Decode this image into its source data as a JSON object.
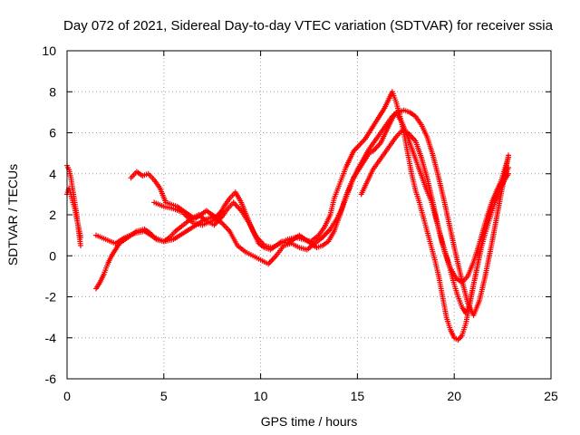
{
  "chart_data": {
    "type": "scatter",
    "title": "Day 072 of 2021, Sidereal Day-to-day VTEC variation (SDTVAR) for receiver ssia",
    "xlabel": "GPS time / hours",
    "ylabel": "SDTVAR / TECUs",
    "xlim": [
      0,
      25
    ],
    "ylim": [
      -6,
      10
    ],
    "xticks": [
      "0",
      "5",
      "10",
      "15",
      "20",
      "25"
    ],
    "yticks": [
      "-6",
      "-4",
      "-2",
      "0",
      "2",
      "4",
      "6",
      "8",
      "10"
    ],
    "grid": true,
    "marker": "+",
    "color": "#ff0000",
    "series": [
      {
        "x": [
          0.0,
          0.1,
          0.2,
          0.3,
          0.4,
          0.5,
          0.6,
          0.7
        ],
        "y": [
          4.4,
          4.2,
          3.8,
          3.2,
          2.6,
          2.0,
          1.2,
          0.5
        ]
      },
      {
        "x": [
          0.0,
          0.1,
          0.2,
          0.3,
          0.4,
          0.5,
          0.6,
          0.7
        ],
        "y": [
          3.0,
          3.3,
          3.0,
          2.6,
          2.3,
          1.8,
          1.4,
          0.9
        ]
      },
      {
        "x": [
          1.5,
          1.7,
          1.9,
          2.1,
          2.3,
          2.5,
          2.7,
          3.0,
          3.3,
          3.6,
          4.0,
          4.3,
          4.6,
          5.0,
          5.3,
          5.6,
          6.0,
          6.4,
          6.8,
          7.2,
          7.6,
          8.0,
          8.3,
          8.6,
          9.0,
          9.4,
          9.8,
          10.2,
          10.6,
          11.0,
          11.4,
          11.8,
          12.2,
          12.6,
          13.0,
          13.3,
          13.6,
          13.8,
          14.0,
          14.2,
          14.4,
          14.6,
          14.8,
          15.0,
          15.2,
          15.4,
          15.6,
          15.8,
          16.0,
          16.2,
          16.4,
          16.6,
          16.8,
          17.0,
          17.2,
          17.4,
          17.6,
          17.8,
          18.0,
          18.2,
          18.4,
          18.6,
          18.8,
          19.0,
          19.2,
          19.4,
          19.6,
          19.8,
          20.0,
          20.2,
          20.4,
          20.6,
          20.8,
          21.0,
          21.2,
          21.4,
          21.6,
          21.8,
          22.0,
          22.2,
          22.4,
          22.6,
          22.8
        ],
        "y": [
          -1.6,
          -1.3,
          -0.9,
          -0.4,
          0.0,
          0.3,
          0.6,
          0.8,
          1.0,
          1.2,
          1.3,
          1.1,
          0.8,
          0.7,
          0.9,
          1.2,
          1.5,
          1.8,
          2.0,
          1.7,
          1.5,
          1.9,
          2.3,
          2.6,
          2.2,
          1.6,
          0.9,
          0.5,
          0.4,
          0.6,
          0.8,
          0.9,
          0.8,
          0.7,
          1.0,
          1.4,
          2.0,
          2.8,
          3.3,
          3.8,
          4.3,
          4.7,
          5.1,
          5.3,
          5.5,
          5.7,
          6.0,
          6.3,
          6.6,
          6.9,
          7.2,
          7.6,
          8.0,
          7.5,
          6.8,
          6.0,
          5.0,
          4.0,
          3.2,
          2.6,
          1.9,
          1.2,
          0.5,
          -0.2,
          -1.0,
          -2.0,
          -3.0,
          -3.6,
          -4.0,
          -4.1,
          -3.9,
          -3.3,
          -2.4,
          -1.4,
          -0.5,
          0.4,
          1.1,
          1.7,
          2.3,
          2.8,
          3.3,
          3.7,
          4.0
        ]
      },
      {
        "x": [
          1.5,
          2.0,
          2.5,
          3.0,
          3.5,
          4.0,
          4.5,
          5.0,
          5.5,
          6.0,
          6.5,
          7.0,
          7.5,
          8.0,
          8.4,
          8.8,
          9.2,
          9.6,
          10.0,
          10.4,
          10.8,
          11.2,
          11.6,
          12.0,
          12.4,
          12.8,
          13.2,
          13.6,
          14.0,
          14.2,
          14.4,
          14.6,
          14.8,
          15.0,
          15.2,
          15.4,
          15.6,
          15.8,
          16.0,
          16.2,
          16.4,
          16.6,
          16.8,
          17.0,
          17.3,
          17.6,
          17.9,
          18.2,
          18.5,
          18.8,
          19.0,
          19.2,
          19.4,
          19.6,
          19.8,
          20.0,
          20.2,
          20.4,
          20.6,
          20.8,
          21.0,
          21.2,
          21.4,
          21.6,
          21.8,
          22.0,
          22.2,
          22.4,
          22.6,
          22.8
        ],
        "y": [
          1.0,
          0.8,
          0.6,
          0.9,
          1.1,
          1.2,
          0.9,
          0.7,
          0.8,
          1.1,
          1.4,
          1.7,
          1.9,
          1.6,
          1.2,
          0.5,
          0.2,
          0.0,
          -0.2,
          -0.4,
          0.0,
          0.5,
          0.6,
          0.4,
          0.3,
          0.6,
          0.9,
          1.3,
          1.9,
          2.3,
          2.8,
          3.3,
          3.8,
          4.1,
          4.4,
          4.7,
          5.0,
          5.1,
          5.3,
          5.5,
          5.9,
          6.3,
          6.7,
          7.0,
          6.5,
          5.8,
          5.0,
          4.2,
          3.4,
          2.7,
          2.0,
          1.3,
          0.6,
          0.0,
          -0.7,
          -1.4,
          -2.0,
          -2.5,
          -2.8,
          -2.3,
          -1.4,
          -0.5,
          0.5,
          1.3,
          2.0,
          2.6,
          3.1,
          3.6,
          4.2,
          4.8
        ]
      },
      {
        "x": [
          3.3,
          3.6,
          3.9,
          4.2,
          4.5,
          4.8,
          5.1,
          5.4,
          5.7,
          6.0,
          6.3,
          6.6,
          6.9,
          7.2,
          7.5,
          7.8,
          8.1,
          8.4,
          8.7,
          9.0,
          9.3,
          9.6,
          9.9,
          10.2,
          10.5,
          10.8,
          11.1,
          11.4,
          11.7,
          12.0,
          12.3,
          12.6,
          12.9,
          13.2,
          13.5,
          13.8,
          14.1,
          14.4,
          14.7,
          15.0,
          15.3,
          15.6,
          15.9,
          16.2,
          16.5,
          16.8,
          17.1,
          17.4,
          17.7,
          18.0,
          18.3,
          18.6,
          18.9,
          19.2,
          19.5,
          19.8,
          20.1,
          20.4,
          20.7,
          21.0,
          21.3,
          21.6,
          21.9,
          22.2,
          22.5,
          22.8
        ],
        "y": [
          3.8,
          4.1,
          3.9,
          4.0,
          3.7,
          3.3,
          2.6,
          2.5,
          2.4,
          2.2,
          2.0,
          1.8,
          2.0,
          2.2,
          2.0,
          1.8,
          2.4,
          2.8,
          3.1,
          2.6,
          1.9,
          1.2,
          0.6,
          0.4,
          0.3,
          0.5,
          0.7,
          0.6,
          0.8,
          1.0,
          0.8,
          0.6,
          0.4,
          0.5,
          0.7,
          1.2,
          2.0,
          2.9,
          3.6,
          4.2,
          4.7,
          5.2,
          5.6,
          6.0,
          6.4,
          6.8,
          7.0,
          7.1,
          7.0,
          6.8,
          6.4,
          5.8,
          4.9,
          3.8,
          2.6,
          1.3,
          0.0,
          -1.2,
          -2.3,
          -2.9,
          -2.2,
          -1.0,
          0.4,
          1.9,
          3.4,
          4.9
        ]
      },
      {
        "x": [
          4.5,
          5.0,
          5.5,
          6.0,
          6.5,
          7.0,
          7.5,
          8.0
        ],
        "y": [
          2.6,
          2.4,
          2.3,
          2.1,
          1.6,
          1.5,
          1.7,
          2.2
        ]
      },
      {
        "x": [
          15.2,
          15.5,
          15.8,
          16.1,
          16.4,
          16.7,
          17.0,
          17.3,
          17.6,
          18.0,
          18.3,
          18.6,
          18.9,
          19.2,
          19.5,
          19.8,
          20.1,
          20.4,
          20.7,
          21.0,
          21.3,
          21.6,
          21.9,
          22.2,
          22.5,
          22.8
        ],
        "y": [
          3.0,
          3.6,
          4.2,
          4.6,
          5.0,
          5.4,
          5.8,
          6.1,
          6.0,
          5.6,
          4.8,
          3.8,
          2.6,
          1.3,
          0.2,
          -0.6,
          -1.1,
          -1.3,
          -1.0,
          -0.3,
          0.6,
          1.6,
          2.5,
          3.2,
          3.7,
          4.3
        ]
      }
    ]
  }
}
